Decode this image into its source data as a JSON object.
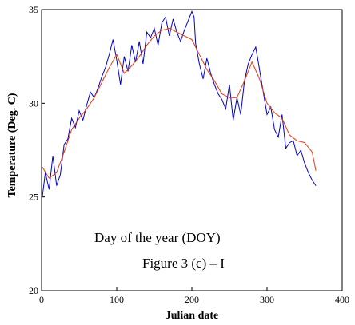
{
  "chart_data": {
    "type": "line",
    "title": "",
    "xlabel": "Julian date",
    "ylabel": "Temperature (Deg. C)",
    "xlim": [
      0,
      400
    ],
    "ylim": [
      20,
      35
    ],
    "xticks": [
      0,
      100,
      200,
      300,
      400
    ],
    "yticks": [
      20,
      25,
      30,
      35
    ],
    "grid": false,
    "annotations": [
      "Day of the year (DOY)",
      "Figure 3 (c) – I"
    ],
    "colors": {
      "series_a": "#0000cc",
      "series_b": "#e8380d"
    },
    "series": [
      {
        "color": "#0000cc",
        "x": [
          1,
          5,
          10,
          15,
          20,
          25,
          30,
          35,
          40,
          45,
          50,
          55,
          60,
          65,
          70,
          75,
          80,
          85,
          90,
          95,
          100,
          105,
          110,
          115,
          120,
          125,
          130,
          135,
          140,
          145,
          150,
          155,
          160,
          165,
          170,
          175,
          180,
          185,
          190,
          195,
          200,
          203,
          205,
          210,
          215,
          220,
          225,
          230,
          235,
          240,
          245,
          250,
          255,
          260,
          265,
          270,
          275,
          280,
          285,
          290,
          295,
          300,
          305,
          310,
          315,
          320,
          325,
          330,
          335,
          340,
          345,
          350,
          355,
          360,
          365
        ],
        "y": [
          25.0,
          26.3,
          25.4,
          27.2,
          25.6,
          26.2,
          27.8,
          28.1,
          29.2,
          28.7,
          29.6,
          29.1,
          29.9,
          30.6,
          30.3,
          30.8,
          31.4,
          31.9,
          32.6,
          33.4,
          32.3,
          31.0,
          32.5,
          31.7,
          33.1,
          32.2,
          33.3,
          32.1,
          33.8,
          33.5,
          34.0,
          33.1,
          34.3,
          34.6,
          33.6,
          34.5,
          33.8,
          33.3,
          33.9,
          34.4,
          34.9,
          34.6,
          33.2,
          32.1,
          31.3,
          32.4,
          31.6,
          31.0,
          30.5,
          30.2,
          29.7,
          31.0,
          29.1,
          30.3,
          29.4,
          31.2,
          32.1,
          32.6,
          33.0,
          31.8,
          30.6,
          29.4,
          29.8,
          28.6,
          28.2,
          29.4,
          27.6,
          27.9,
          28.0,
          27.2,
          27.5,
          26.8,
          26.3,
          25.9,
          25.6
        ]
      },
      {
        "color": "#e8380d",
        "x": [
          1,
          10,
          20,
          30,
          40,
          50,
          60,
          70,
          80,
          90,
          100,
          110,
          120,
          130,
          140,
          150,
          160,
          170,
          180,
          190,
          200,
          210,
          220,
          230,
          240,
          250,
          260,
          270,
          280,
          290,
          300,
          310,
          320,
          330,
          340,
          350,
          360,
          365
        ],
        "y": [
          26.6,
          26.0,
          26.3,
          27.4,
          28.6,
          29.2,
          29.7,
          30.3,
          31.1,
          31.9,
          32.6,
          31.6,
          32.0,
          32.5,
          33.1,
          33.6,
          33.9,
          34.0,
          33.8,
          33.6,
          33.4,
          32.6,
          31.8,
          31.2,
          30.5,
          30.3,
          30.3,
          31.2,
          32.2,
          31.3,
          30.0,
          29.5,
          29.2,
          28.3,
          28.0,
          27.9,
          27.4,
          26.4
        ]
      }
    ]
  }
}
